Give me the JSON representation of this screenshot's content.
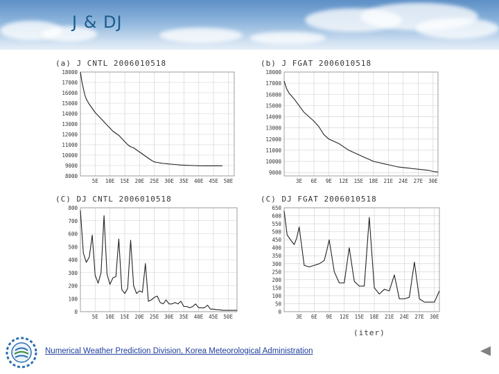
{
  "slide": {
    "title": "J & DJ",
    "footer_link": "Numerical Weather Prediction Division,  Korea Meteorological Administration",
    "iter_label": "(iter)",
    "nav_back_icon": "triangle-left-icon",
    "logo_icon": "kma-logo-icon",
    "line_color": "#222222",
    "grid_color": "#cfcfcf"
  },
  "chart_data": [
    {
      "type": "line",
      "title": "(a) J CNTL 2006010518",
      "xlabel": "",
      "ylabel": "",
      "xlim": [
        0,
        52
      ],
      "ylim": [
        8000,
        18000
      ],
      "xticks": [
        5,
        10,
        15,
        20,
        25,
        30,
        35,
        40,
        45,
        50
      ],
      "xtick_labels": [
        "5E",
        "10E",
        "15E",
        "20E",
        "25E",
        "30E",
        "35E",
        "40E",
        "45E",
        "50E"
      ],
      "yticks": [
        8000,
        9000,
        10000,
        11000,
        12000,
        13000,
        14000,
        15000,
        16000,
        17000,
        18000
      ],
      "ytick_labels": [
        "8000",
        "9000",
        "10000",
        "11000",
        "12000",
        "13000",
        "14000",
        "15000",
        "16000",
        "17000",
        "18000"
      ],
      "series": [
        {
          "name": "J",
          "x": [
            0,
            0.5,
            1,
            1.5,
            2,
            3,
            4,
            5,
            6,
            7,
            8,
            9,
            10,
            11,
            12,
            13,
            14,
            15,
            16,
            17,
            18,
            19,
            20,
            21,
            22,
            23,
            24,
            25,
            26,
            27,
            28,
            29,
            30,
            32,
            34,
            36,
            38,
            40,
            42,
            44,
            46,
            48
          ],
          "y": [
            18000,
            17100,
            16400,
            15800,
            15400,
            14900,
            14500,
            14100,
            13800,
            13500,
            13200,
            12900,
            12600,
            12300,
            12100,
            11900,
            11600,
            11300,
            11000,
            10800,
            10700,
            10500,
            10300,
            10100,
            9900,
            9700,
            9500,
            9350,
            9300,
            9250,
            9200,
            9180,
            9150,
            9100,
            9050,
            9020,
            9000,
            8980,
            8970,
            8970,
            8970,
            8970
          ]
        }
      ]
    },
    {
      "type": "line",
      "title": "(b) J FGAT 2006010518",
      "xlabel": "",
      "ylabel": "",
      "xlim": [
        0,
        31
      ],
      "ylim": [
        8700,
        18000
      ],
      "xticks": [
        3,
        6,
        9,
        12,
        15,
        18,
        21,
        24,
        27,
        30
      ],
      "xtick_labels": [
        "3E",
        "6E",
        "9E",
        "12E",
        "15E",
        "18E",
        "21E",
        "24E",
        "27E",
        "30E"
      ],
      "yticks": [
        9000,
        10000,
        11000,
        12000,
        13000,
        14000,
        15000,
        16000,
        17000,
        18000
      ],
      "ytick_labels": [
        "9000",
        "10000",
        "11000",
        "12000",
        "13000",
        "14000",
        "15000",
        "16000",
        "17000",
        "18000"
      ],
      "series": [
        {
          "name": "J",
          "x": [
            0,
            0.5,
            1,
            2,
            3,
            4,
            5,
            6,
            7,
            8,
            9,
            10,
            11,
            12,
            13,
            14,
            15,
            16,
            17,
            18,
            19,
            20,
            21,
            22,
            23,
            24,
            25,
            26,
            27,
            28,
            29,
            30,
            31
          ],
          "y": [
            17200,
            16500,
            16100,
            15600,
            15000,
            14400,
            14000,
            13600,
            13100,
            12400,
            12000,
            11800,
            11600,
            11300,
            11000,
            10800,
            10600,
            10400,
            10200,
            10000,
            9900,
            9800,
            9700,
            9600,
            9500,
            9450,
            9400,
            9350,
            9300,
            9250,
            9200,
            9100,
            9050
          ]
        }
      ]
    },
    {
      "type": "line",
      "title": "(C) DJ CNTL 2006010518",
      "xlabel": "",
      "ylabel": "",
      "xlim": [
        0,
        53
      ],
      "ylim": [
        0,
        800
      ],
      "xticks": [
        5,
        10,
        15,
        20,
        25,
        30,
        35,
        40,
        45,
        50
      ],
      "xtick_labels": [
        "5E",
        "10E",
        "15E",
        "20E",
        "25E",
        "30E",
        "35E",
        "40E",
        "45E",
        "50E"
      ],
      "yticks": [
        0,
        100,
        200,
        300,
        400,
        500,
        600,
        700,
        800
      ],
      "ytick_labels": [
        "0",
        "100",
        "200",
        "300",
        "400",
        "500",
        "600",
        "700",
        "800"
      ],
      "series": [
        {
          "name": "DJ",
          "x": [
            0,
            1,
            2,
            3,
            4,
            5,
            6,
            7,
            8,
            9,
            10,
            11,
            12,
            13,
            14,
            15,
            16,
            17,
            18,
            19,
            20,
            21,
            22,
            23,
            24,
            25,
            26,
            27,
            28,
            29,
            30,
            31,
            32,
            33,
            34,
            35,
            36,
            37,
            38,
            39,
            40,
            41,
            42,
            43,
            44,
            45,
            46,
            47,
            48,
            49,
            50,
            51,
            52,
            53
          ],
          "y": [
            780,
            450,
            380,
            420,
            590,
            280,
            220,
            300,
            740,
            290,
            210,
            260,
            270,
            560,
            170,
            140,
            180,
            550,
            200,
            140,
            160,
            150,
            370,
            80,
            90,
            110,
            120,
            70,
            60,
            90,
            60,
            60,
            70,
            60,
            80,
            40,
            40,
            30,
            40,
            60,
            30,
            30,
            30,
            50,
            20,
            20,
            15,
            15,
            10,
            10,
            10,
            10,
            10,
            10
          ]
        }
      ]
    },
    {
      "type": "line",
      "title": "(C) DJ FGAT 2006010518",
      "xlabel": "",
      "ylabel": "",
      "xlim": [
        0,
        31
      ],
      "ylim": [
        0,
        650
      ],
      "xticks": [
        3,
        6,
        9,
        12,
        15,
        18,
        21,
        24,
        27,
        30
      ],
      "xtick_labels": [
        "3E",
        "6E",
        "9E",
        "12E",
        "15E",
        "18E",
        "21E",
        "24E",
        "27E",
        "30E"
      ],
      "yticks": [
        0,
        50,
        100,
        150,
        200,
        250,
        300,
        350,
        400,
        450,
        500,
        550,
        600,
        650
      ],
      "ytick_labels": [
        "0",
        "50",
        "100",
        "150",
        "200",
        "250",
        "300",
        "350",
        "400",
        "450",
        "500",
        "550",
        "600",
        "650"
      ],
      "series": [
        {
          "name": "DJ",
          "x": [
            0,
            0.6,
            1.5,
            2,
            2.5,
            3,
            4,
            5,
            6,
            7,
            8,
            8.5,
            9,
            10,
            11,
            12,
            13,
            14,
            15,
            16,
            17,
            18,
            19,
            20,
            21,
            22,
            23,
            24,
            25,
            26,
            27,
            28,
            29,
            30,
            31
          ],
          "y": [
            630,
            480,
            440,
            420,
            460,
            530,
            290,
            280,
            290,
            300,
            320,
            380,
            450,
            250,
            180,
            180,
            400,
            190,
            160,
            160,
            590,
            150,
            110,
            140,
            130,
            230,
            80,
            80,
            90,
            310,
            80,
            60,
            60,
            60,
            130
          ]
        }
      ]
    }
  ]
}
